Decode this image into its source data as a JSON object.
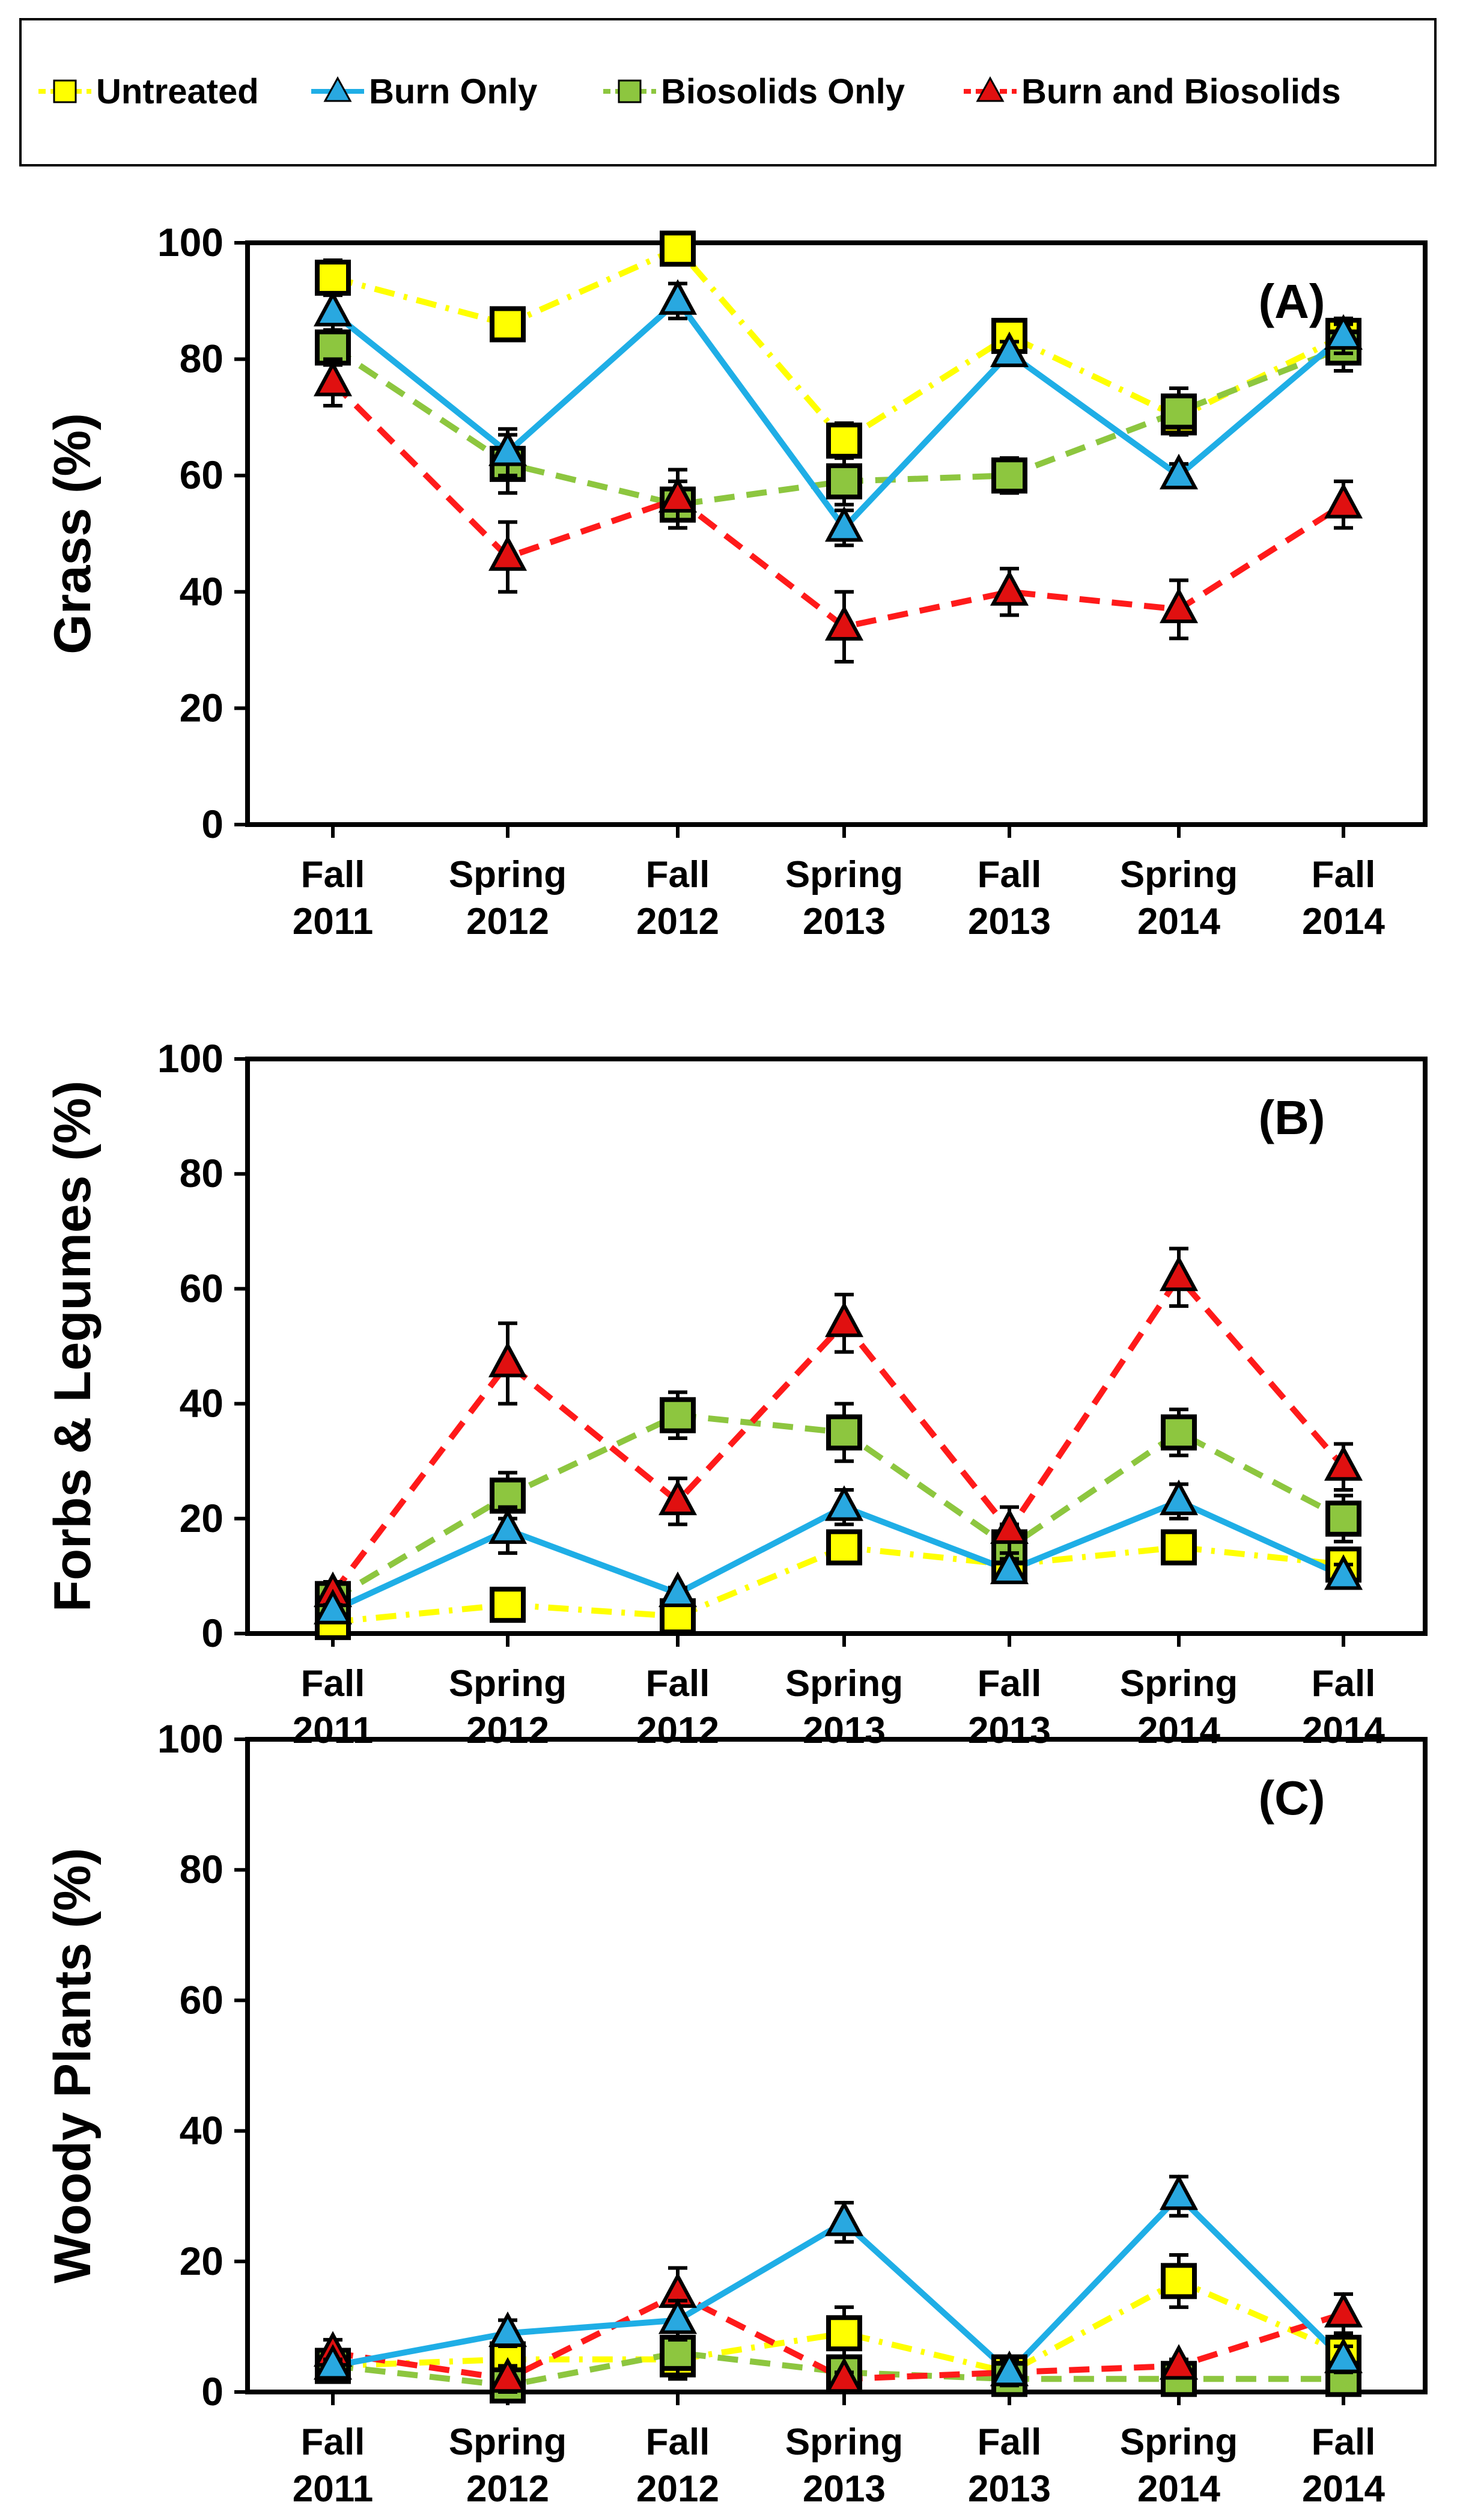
{
  "legend": {
    "entries": [
      {
        "label": "Untreated",
        "color": "#FFFF00",
        "line": "#FFFF00",
        "marker": "square",
        "dash": "dashdot"
      },
      {
        "label": "Burn Only",
        "color": "#29A8E0",
        "line": "#1FAEE6",
        "marker": "triangle",
        "dash": "solid"
      },
      {
        "label": "Biosolids Only",
        "color": "#8DC63F",
        "line": "#8DC63F",
        "marker": "square",
        "dash": "dashed"
      },
      {
        "label": "Burn and Biosolids",
        "color": "#E01010",
        "line": "#FF1A1A",
        "marker": "triangle",
        "dash": "dashed"
      }
    ]
  },
  "chart_data": [
    {
      "type": "line",
      "panel_label": "(A)",
      "ylabel": "Grass (%)",
      "ylim": [
        0,
        100
      ],
      "yticks": [
        "0",
        "20",
        "40",
        "60",
        "80",
        "100"
      ],
      "categories": [
        [
          "Fall",
          "2011"
        ],
        [
          "Spring",
          "2012"
        ],
        [
          "Fall",
          "2012"
        ],
        [
          "Spring",
          "2013"
        ],
        [
          "Fall",
          "2013"
        ],
        [
          "Spring",
          "2014"
        ],
        [
          "Fall",
          "2014"
        ]
      ],
      "series": [
        {
          "name": "Untreated",
          "values": [
            94,
            86,
            99,
            66,
            84,
            70,
            84
          ],
          "errors": [
            3,
            2,
            1,
            3,
            2,
            3,
            3
          ]
        },
        {
          "name": "Burn Only",
          "values": [
            88,
            64,
            90,
            51,
            81,
            60,
            84
          ],
          "errors": [
            3,
            4,
            3,
            3,
            2,
            2,
            3
          ]
        },
        {
          "name": "Biosolids Only",
          "values": [
            82,
            62,
            55,
            59,
            60,
            71,
            82
          ],
          "errors": [
            3,
            5,
            4,
            4,
            3,
            4,
            4
          ]
        },
        {
          "name": "Burn and Biosolids",
          "values": [
            76,
            46,
            56,
            34,
            40,
            37,
            55
          ],
          "errors": [
            4,
            6,
            5,
            6,
            4,
            5,
            4
          ]
        }
      ]
    },
    {
      "type": "line",
      "panel_label": "(B)",
      "ylabel": "Forbs & Legumes (%)",
      "ylim": [
        0,
        100
      ],
      "yticks": [
        "0",
        "20",
        "40",
        "60",
        "80",
        "100"
      ],
      "categories": [
        [
          "Fall",
          "2011"
        ],
        [
          "Spring",
          "2012"
        ],
        [
          "Fall",
          "2012"
        ],
        [
          "Spring",
          "2013"
        ],
        [
          "Fall",
          "2013"
        ],
        [
          "Spring",
          "2014"
        ],
        [
          "Fall",
          "2014"
        ]
      ],
      "series": [
        {
          "name": "Untreated",
          "values": [
            2,
            5,
            3,
            15,
            12,
            15,
            12
          ],
          "errors": [
            1,
            1,
            1,
            2,
            2,
            2,
            2
          ]
        },
        {
          "name": "Burn Only",
          "values": [
            4,
            18,
            7,
            22,
            11,
            23,
            10
          ],
          "errors": [
            1,
            4,
            1,
            3,
            2,
            3,
            2
          ]
        },
        {
          "name": "Biosolids Only",
          "values": [
            6,
            24,
            38,
            35,
            15,
            35,
            20
          ],
          "errors": [
            2,
            4,
            4,
            5,
            4,
            4,
            4
          ]
        },
        {
          "name": "Burn and Biosolids",
          "values": [
            7,
            47,
            23,
            54,
            18,
            62,
            29
          ],
          "errors": [
            2,
            7,
            4,
            5,
            4,
            5,
            4
          ]
        }
      ]
    },
    {
      "type": "line",
      "panel_label": "(C)",
      "ylabel": "Woody Plants (%)",
      "ylim": [
        0,
        100
      ],
      "yticks": [
        "0",
        "20",
        "40",
        "60",
        "80",
        "100"
      ],
      "categories": [
        [
          "Fall",
          "2011"
        ],
        [
          "Spring",
          "2012"
        ],
        [
          "Fall",
          "2012"
        ],
        [
          "Spring",
          "2013"
        ],
        [
          "Fall",
          "2013"
        ],
        [
          "Spring",
          "2014"
        ],
        [
          "Fall",
          "2014"
        ]
      ],
      "series": [
        {
          "name": "Untreated",
          "values": [
            4,
            5,
            5,
            9,
            3,
            17,
            6
          ],
          "errors": [
            2,
            2,
            2,
            4,
            2,
            4,
            3
          ]
        },
        {
          "name": "Burn Only",
          "values": [
            4,
            9,
            11,
            26,
            3,
            30,
            5
          ],
          "errors": [
            1,
            2,
            3,
            3,
            2,
            3,
            2
          ]
        },
        {
          "name": "Biosolids Only",
          "values": [
            4,
            1,
            6,
            3,
            2,
            2,
            2
          ],
          "errors": [
            2,
            1,
            4,
            2,
            1,
            1,
            1
          ]
        },
        {
          "name": "Burn and Biosolids",
          "values": [
            6,
            2,
            15,
            2,
            3,
            4,
            12
          ],
          "errors": [
            2,
            2,
            4,
            1,
            2,
            1,
            3
          ]
        }
      ]
    }
  ]
}
